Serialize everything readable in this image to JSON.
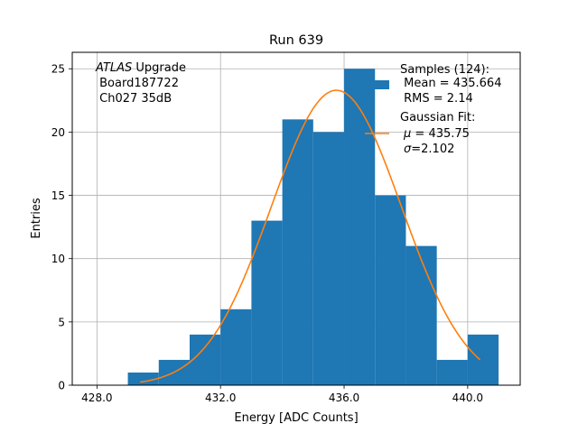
{
  "chart_data": {
    "type": "histogram",
    "title": "Run 639",
    "xlabel": "Energy [ADC Counts]",
    "ylabel": "Entries",
    "xlim": [
      427.2,
      441.7
    ],
    "ylim": [
      0,
      26.3
    ],
    "grid": true,
    "xticks": [
      428,
      432,
      436,
      440
    ],
    "xtick_labels": [
      "428.0",
      "432.0",
      "436.0",
      "440.0"
    ],
    "yticks": [
      0,
      5,
      10,
      15,
      20,
      25
    ],
    "ytick_labels": [
      "0",
      "5",
      "10",
      "15",
      "20",
      "25"
    ],
    "bins": [
      {
        "x0": 429,
        "x1": 430,
        "count": 1
      },
      {
        "x0": 430,
        "x1": 431,
        "count": 2
      },
      {
        "x0": 431,
        "x1": 432,
        "count": 4
      },
      {
        "x0": 432,
        "x1": 433,
        "count": 6
      },
      {
        "x0": 433,
        "x1": 434,
        "count": 13
      },
      {
        "x0": 434,
        "x1": 435,
        "count": 21
      },
      {
        "x0": 435,
        "x1": 436,
        "count": 20
      },
      {
        "x0": 436,
        "x1": 437,
        "count": 25
      },
      {
        "x0": 437,
        "x1": 438,
        "count": 15
      },
      {
        "x0": 438,
        "x1": 439,
        "count": 11
      },
      {
        "x0": 439,
        "x1": 440,
        "count": 2
      },
      {
        "x0": 440,
        "x1": 441,
        "count": 4
      }
    ],
    "fit": {
      "name": "Gaussian Fit",
      "amplitude": 23.3,
      "mu": 435.75,
      "sigma": 2.102,
      "x_range": [
        429.4,
        440.4
      ]
    },
    "annotation": {
      "italic": "ATLAS",
      "rest": " Upgrade",
      "line2": " Board187722",
      "line3": " Ch027 35dB"
    },
    "legend": {
      "position": "top-right",
      "samples_title": "Samples (124):",
      "samples_mean": " Mean = 435.664",
      "samples_rms": " RMS = 2.14",
      "fit_title": "Gaussian Fit:",
      "fit_mu_symbol": "μ",
      "fit_mu_rest": " = 435.75",
      "fit_sigma_symbol": "σ",
      "fit_sigma_rest": "=2.102"
    },
    "colors": {
      "bars": "#1f77b4",
      "fit": "#ff7f0e",
      "grid": "#b0b0b0",
      "axes": "#000000"
    }
  }
}
